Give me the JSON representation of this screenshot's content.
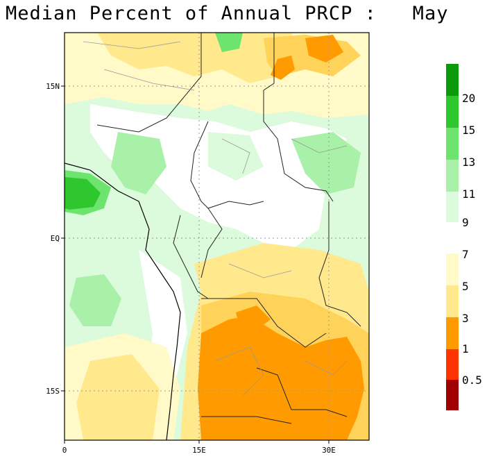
{
  "title": "Median Percent of Annual PRCP :   May",
  "axes": {
    "lat_ticks": [
      "15N",
      "EQ",
      "15S"
    ],
    "lon_ticks": [
      "0",
      "15E",
      "30E"
    ]
  },
  "legend": {
    "labels": [
      "20",
      "15",
      "13",
      "11",
      "9",
      "7",
      "5",
      "3",
      "1",
      "0.5"
    ],
    "colors": {
      "g20": "#0a9a0a",
      "g15": "#2ec82e",
      "g13": "#6de46d",
      "g11": "#a9f0a9",
      "g9": "#dcfadc",
      "y7": "#fffac8",
      "y5": "#ffe98c",
      "y3": "#ffd25a",
      "o1": "#ff9a00",
      "r05": "#ff3300",
      "dr": "#a00000"
    }
  }
}
